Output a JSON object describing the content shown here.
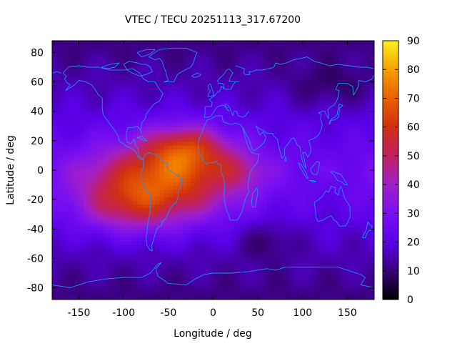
{
  "chart_data": {
    "type": "heatmap",
    "title": "VTEC / TECU 20251113_317.67200",
    "xlabel": "Longitude / deg",
    "ylabel": "Latitude / deg",
    "xlim": [
      -180,
      180
    ],
    "ylim": [
      -88,
      88
    ],
    "xticks": [
      -150,
      -100,
      -50,
      0,
      50,
      100,
      150
    ],
    "yticks": [
      -80,
      -60,
      -40,
      -20,
      0,
      20,
      40,
      60,
      80
    ],
    "colorbar": {
      "range": [
        0,
        90
      ],
      "ticks": [
        0,
        10,
        20,
        30,
        40,
        50,
        60,
        70,
        80,
        90
      ],
      "palette": [
        "#000000",
        "#3a007a",
        "#5a00e8",
        "#7a10f0",
        "#a020c8",
        "#c02060",
        "#d03010",
        "#e86000",
        "#f6a000",
        "#fff020"
      ],
      "tick_labels_position": "right"
    },
    "coastline_color": "#1e90ff",
    "grid": false,
    "features": {
      "peak_region": {
        "lon_range": [
          -60,
          0
        ],
        "lat_range": [
          5,
          25
        ],
        "value": 85
      },
      "enhanced_band": {
        "lon_range": [
          -170,
          40
        ],
        "lat_range": [
          -45,
          30
        ],
        "value_range": [
          50,
          80
        ]
      },
      "background": {
        "value_range": [
          10,
          25
        ]
      },
      "lows": [
        {
          "lon": 60,
          "lat": -50,
          "value": 8
        },
        {
          "lon": 110,
          "lat": 60,
          "value": 10
        },
        {
          "lon": 150,
          "lat": 60,
          "value": 9
        }
      ]
    }
  }
}
